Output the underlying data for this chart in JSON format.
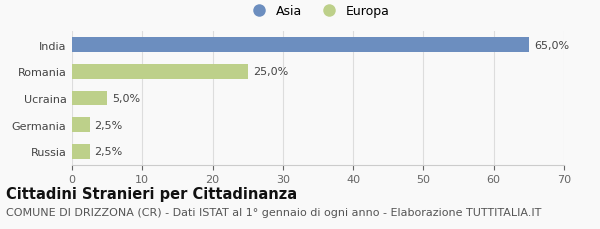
{
  "categories": [
    "India",
    "Romania",
    "Ucraina",
    "Germania",
    "Russia"
  ],
  "values": [
    65.0,
    25.0,
    5.0,
    2.5,
    2.5
  ],
  "labels": [
    "65,0%",
    "25,0%",
    "5,0%",
    "2,5%",
    "2,5%"
  ],
  "colors": [
    "#6c8ebf",
    "#bdd08a",
    "#bdd08a",
    "#bdd08a",
    "#bdd08a"
  ],
  "legend_entries": [
    "Asia",
    "Europa"
  ],
  "legend_colors": [
    "#6c8ebf",
    "#bdd08a"
  ],
  "xlim": [
    0,
    70
  ],
  "xticks": [
    0,
    10,
    20,
    30,
    40,
    50,
    60,
    70
  ],
  "title": "Cittadini Stranieri per Cittadinanza",
  "subtitle": "COMUNE DI DRIZZONA (CR) - Dati ISTAT al 1° gennaio di ogni anno - Elaborazione TUTTITALIA.IT",
  "background_color": "#f9f9f9",
  "bar_height": 0.55,
  "title_fontsize": 10.5,
  "subtitle_fontsize": 8.0,
  "label_fontsize": 8.0,
  "tick_fontsize": 8.0,
  "legend_fontsize": 9.0
}
